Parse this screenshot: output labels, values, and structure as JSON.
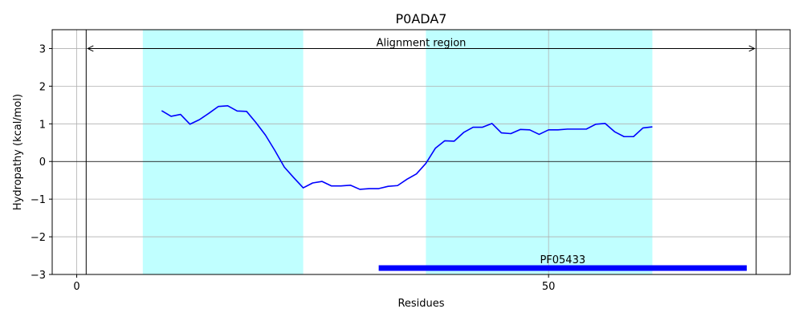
{
  "chart_data": {
    "type": "line",
    "title": "P0ADA7",
    "xlabel": "Residues",
    "ylabel": "Hydropathy (kcal/mol)",
    "xlim": [
      -2.6,
      75.6
    ],
    "ylim": [
      -3,
      3.5
    ],
    "xticks": [
      0,
      50
    ],
    "yticks": [
      -3,
      -2,
      -1,
      0,
      1,
      2,
      3
    ],
    "ytick_labels": [
      "−3",
      "−2",
      "−1",
      "0",
      "1",
      "2",
      "3"
    ],
    "grid": true,
    "colors": {
      "line": "#0000ff",
      "region": "#c0ffff",
      "domain_bar": "#0000ff",
      "grid": "#b0b0b0"
    },
    "shaded_regions": [
      {
        "x_start": 7,
        "x_end": 24
      },
      {
        "x_start": 37,
        "x_end": 61
      }
    ],
    "alignment_region": {
      "label": "Alignment region",
      "x_start": 1,
      "x_end": 72,
      "y": 3
    },
    "domain": {
      "label": "PF05433",
      "x_start": 32,
      "x_end": 71,
      "y": -2.83
    },
    "series": [
      {
        "x": [
          9,
          10,
          11,
          12,
          13,
          14,
          15,
          16,
          17,
          18,
          19,
          20,
          21,
          22,
          23,
          24,
          25,
          26,
          27,
          28,
          29,
          30,
          31,
          32,
          33,
          34,
          35,
          36,
          37,
          38,
          39,
          40,
          41,
          42,
          43,
          44,
          45,
          46,
          47,
          48,
          49,
          50,
          51,
          52,
          53,
          54,
          55,
          56,
          57,
          58,
          59,
          60,
          61
        ],
        "values": [
          1.35,
          1.2,
          1.25,
          0.99,
          1.11,
          1.28,
          1.46,
          1.48,
          1.34,
          1.33,
          1.03,
          0.7,
          0.29,
          -0.15,
          -0.43,
          -0.7,
          -0.57,
          -0.53,
          -0.65,
          -0.65,
          -0.63,
          -0.74,
          -0.72,
          -0.72,
          -0.66,
          -0.64,
          -0.47,
          -0.33,
          -0.05,
          0.35,
          0.55,
          0.54,
          0.77,
          0.91,
          0.91,
          1.01,
          0.76,
          0.74,
          0.85,
          0.84,
          0.72,
          0.84,
          0.84,
          0.86,
          0.86,
          0.86,
          0.99,
          1.01,
          0.79,
          0.66,
          0.66,
          0.89,
          0.92
        ]
      }
    ]
  }
}
